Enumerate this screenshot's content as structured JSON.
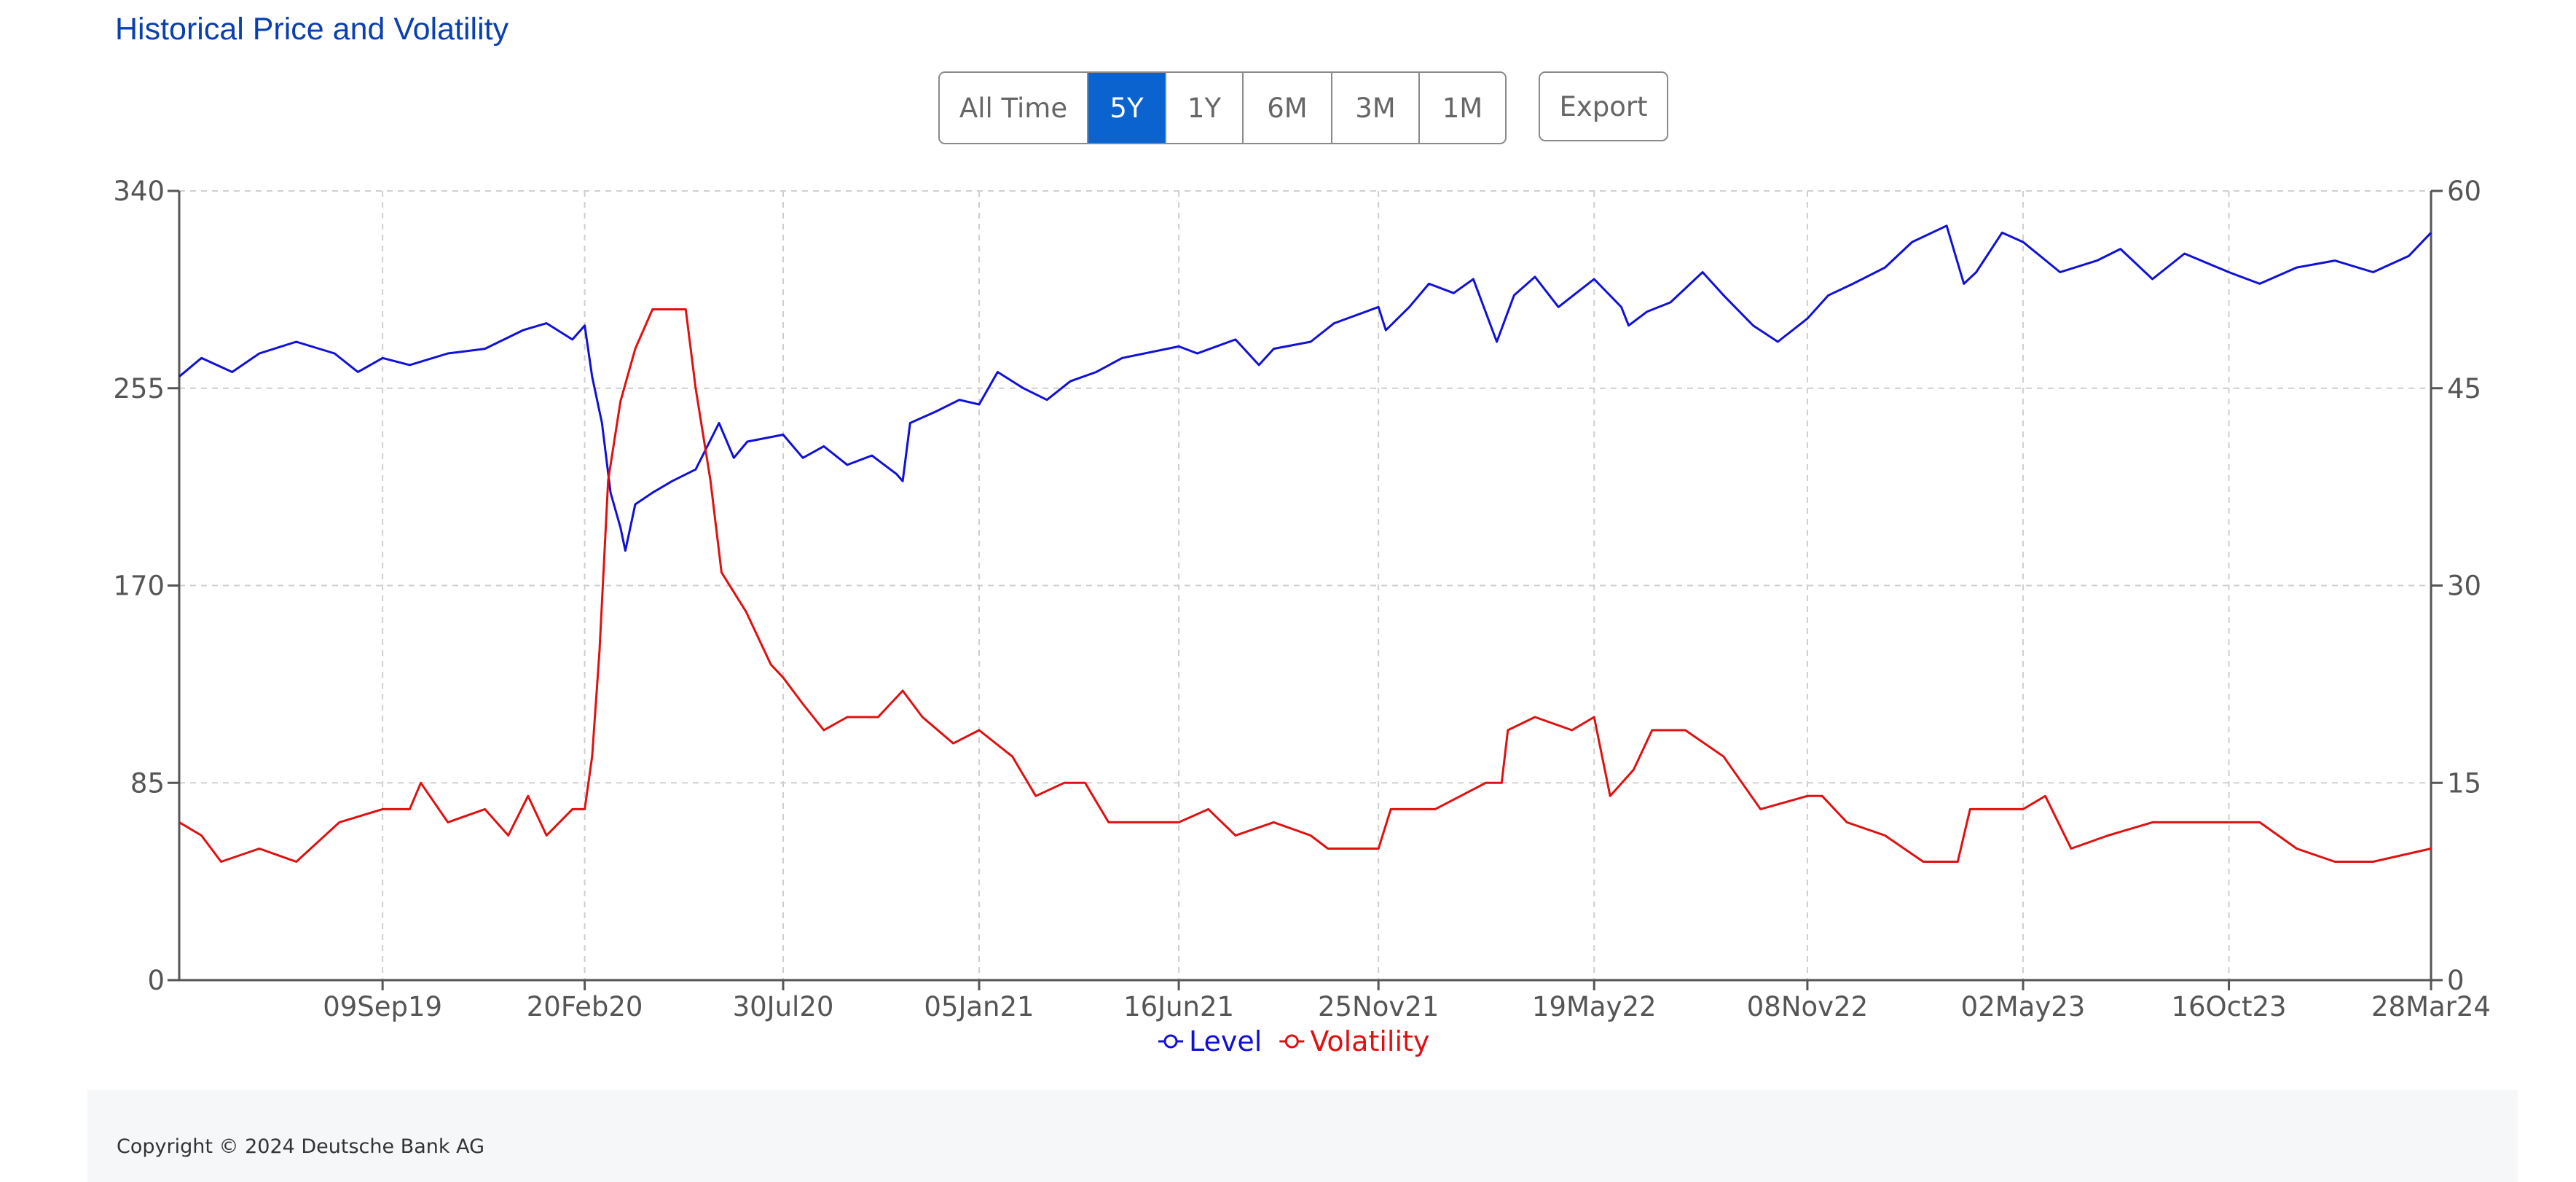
{
  "title": "Historical Price and Volatility",
  "range_buttons": [
    {
      "label": "All Time",
      "active": false
    },
    {
      "label": "5Y",
      "active": true
    },
    {
      "label": "1Y",
      "active": false
    },
    {
      "label": "6M",
      "active": false
    },
    {
      "label": "3M",
      "active": false
    },
    {
      "label": "1M",
      "active": false
    }
  ],
  "export_label": "Export",
  "footer": {
    "copyright": "Copyright © 2024 Deutsche Bank AG"
  },
  "colors": {
    "level": "#1010d8",
    "volatility": "#e01010",
    "grid": "#cfcfcf",
    "axis": "#555555",
    "active_button": "#0b63d0"
  },
  "chart_data": {
    "type": "line",
    "title": "",
    "xlabel": "",
    "ylabel_left": "",
    "ylabel_right": "",
    "x_tick_labels": [
      "09Sep19",
      "20Feb20",
      "30Jul20",
      "05Jan21",
      "16Jun21",
      "25Nov21",
      "19May22",
      "08Nov22",
      "02May23",
      "16Oct23",
      "28Mar24"
    ],
    "xlim": [
      "2019-03-28",
      "2024-03-28"
    ],
    "y_left": {
      "ticks": [
        0,
        85,
        170,
        255,
        340
      ],
      "lim": [
        0,
        340
      ]
    },
    "y_right": {
      "ticks": [
        0,
        15,
        30,
        45,
        60
      ],
      "lim": [
        0,
        60
      ]
    },
    "grid": true,
    "legend_position": "bottom-center",
    "series": [
      {
        "name": "Level",
        "axis": "left",
        "color": "#1010d8",
        "points": [
          [
            "2019-03-28",
            260
          ],
          [
            "2019-04-15",
            268
          ],
          [
            "2019-05-10",
            262
          ],
          [
            "2019-06-01",
            270
          ],
          [
            "2019-07-01",
            275
          ],
          [
            "2019-08-01",
            270
          ],
          [
            "2019-08-20",
            262
          ],
          [
            "2019-09-09",
            268
          ],
          [
            "2019-10-01",
            265
          ],
          [
            "2019-11-01",
            270
          ],
          [
            "2019-12-01",
            272
          ],
          [
            "2020-01-01",
            280
          ],
          [
            "2020-01-20",
            283
          ],
          [
            "2020-02-10",
            276
          ],
          [
            "2020-02-20",
            282
          ],
          [
            "2020-02-26",
            260
          ],
          [
            "2020-03-05",
            240
          ],
          [
            "2020-03-12",
            210
          ],
          [
            "2020-03-20",
            195
          ],
          [
            "2020-03-24",
            185
          ],
          [
            "2020-04-01",
            205
          ],
          [
            "2020-04-15",
            210
          ],
          [
            "2020-05-01",
            215
          ],
          [
            "2020-05-20",
            220
          ],
          [
            "2020-06-08",
            240
          ],
          [
            "2020-06-20",
            225
          ],
          [
            "2020-07-01",
            232
          ],
          [
            "2020-07-30",
            235
          ],
          [
            "2020-08-15",
            225
          ],
          [
            "2020-09-01",
            230
          ],
          [
            "2020-09-20",
            222
          ],
          [
            "2020-10-10",
            226
          ],
          [
            "2020-10-30",
            218
          ],
          [
            "2020-11-04",
            215
          ],
          [
            "2020-11-10",
            240
          ],
          [
            "2020-12-01",
            245
          ],
          [
            "2020-12-20",
            250
          ],
          [
            "2021-01-05",
            248
          ],
          [
            "2021-01-20",
            262
          ],
          [
            "2021-02-10",
            255
          ],
          [
            "2021-03-01",
            250
          ],
          [
            "2021-03-20",
            258
          ],
          [
            "2021-04-10",
            262
          ],
          [
            "2021-05-01",
            268
          ],
          [
            "2021-06-16",
            273
          ],
          [
            "2021-07-01",
            270
          ],
          [
            "2021-08-01",
            276
          ],
          [
            "2021-08-20",
            265
          ],
          [
            "2021-09-01",
            272
          ],
          [
            "2021-10-01",
            275
          ],
          [
            "2021-10-20",
            283
          ],
          [
            "2021-11-25",
            290
          ],
          [
            "2021-12-01",
            280
          ],
          [
            "2021-12-20",
            290
          ],
          [
            "2022-01-05",
            300
          ],
          [
            "2022-01-25",
            296
          ],
          [
            "2022-02-10",
            302
          ],
          [
            "2022-03-01",
            275
          ],
          [
            "2022-03-15",
            295
          ],
          [
            "2022-04-01",
            303
          ],
          [
            "2022-04-20",
            290
          ],
          [
            "2022-05-19",
            302
          ],
          [
            "2022-06-10",
            290
          ],
          [
            "2022-06-16",
            282
          ],
          [
            "2022-07-01",
            288
          ],
          [
            "2022-07-20",
            292
          ],
          [
            "2022-08-15",
            305
          ],
          [
            "2022-09-01",
            295
          ],
          [
            "2022-09-25",
            282
          ],
          [
            "2022-10-15",
            275
          ],
          [
            "2022-11-08",
            285
          ],
          [
            "2022-11-25",
            295
          ],
          [
            "2022-12-15",
            300
          ],
          [
            "2023-01-10",
            307
          ],
          [
            "2023-02-01",
            318
          ],
          [
            "2023-03-01",
            325
          ],
          [
            "2023-03-15",
            300
          ],
          [
            "2023-03-25",
            305
          ],
          [
            "2023-04-15",
            322
          ],
          [
            "2023-05-02",
            318
          ],
          [
            "2023-06-01",
            305
          ],
          [
            "2023-07-01",
            310
          ],
          [
            "2023-07-20",
            315
          ],
          [
            "2023-08-15",
            302
          ],
          [
            "2023-09-10",
            313
          ],
          [
            "2023-10-16",
            305
          ],
          [
            "2023-11-10",
            300
          ],
          [
            "2023-12-10",
            307
          ],
          [
            "2024-01-10",
            310
          ],
          [
            "2024-02-10",
            305
          ],
          [
            "2024-03-10",
            312
          ],
          [
            "2024-03-28",
            322
          ]
        ]
      },
      {
        "name": "Volatility",
        "axis": "right",
        "color": "#e01010",
        "points": [
          [
            "2019-03-28",
            12
          ],
          [
            "2019-04-15",
            11
          ],
          [
            "2019-05-01",
            9
          ],
          [
            "2019-06-01",
            10
          ],
          [
            "2019-07-01",
            9
          ],
          [
            "2019-08-05",
            12
          ],
          [
            "2019-09-09",
            13
          ],
          [
            "2019-10-01",
            13
          ],
          [
            "2019-10-10",
            15
          ],
          [
            "2019-11-01",
            12
          ],
          [
            "2019-12-01",
            13
          ],
          [
            "2019-12-20",
            11
          ],
          [
            "2020-01-05",
            14
          ],
          [
            "2020-01-20",
            11
          ],
          [
            "2020-02-10",
            13
          ],
          [
            "2020-02-20",
            13
          ],
          [
            "2020-02-26",
            17
          ],
          [
            "2020-03-03",
            25
          ],
          [
            "2020-03-10",
            38
          ],
          [
            "2020-03-20",
            44
          ],
          [
            "2020-04-01",
            48
          ],
          [
            "2020-04-15",
            51
          ],
          [
            "2020-05-01",
            51
          ],
          [
            "2020-05-12",
            51
          ],
          [
            "2020-05-20",
            45
          ],
          [
            "2020-06-01",
            38
          ],
          [
            "2020-06-10",
            31
          ],
          [
            "2020-06-30",
            28
          ],
          [
            "2020-07-20",
            24
          ],
          [
            "2020-07-30",
            23
          ],
          [
            "2020-08-15",
            21
          ],
          [
            "2020-09-01",
            19
          ],
          [
            "2020-09-20",
            20
          ],
          [
            "2020-10-15",
            20
          ],
          [
            "2020-11-04",
            22
          ],
          [
            "2020-11-20",
            20
          ],
          [
            "2020-12-15",
            18
          ],
          [
            "2021-01-05",
            19
          ],
          [
            "2021-02-01",
            17
          ],
          [
            "2021-02-20",
            14
          ],
          [
            "2021-03-15",
            15
          ],
          [
            "2021-04-01",
            15
          ],
          [
            "2021-04-20",
            12
          ],
          [
            "2021-05-15",
            12
          ],
          [
            "2021-06-16",
            12
          ],
          [
            "2021-07-10",
            13
          ],
          [
            "2021-08-01",
            11
          ],
          [
            "2021-09-01",
            12
          ],
          [
            "2021-10-01",
            11
          ],
          [
            "2021-10-15",
            10
          ],
          [
            "2021-11-25",
            10
          ],
          [
            "2021-12-05",
            13
          ],
          [
            "2022-01-10",
            13
          ],
          [
            "2022-02-20",
            15
          ],
          [
            "2022-03-05",
            15
          ],
          [
            "2022-03-10",
            19
          ],
          [
            "2022-04-01",
            20
          ],
          [
            "2022-05-01",
            19
          ],
          [
            "2022-05-19",
            20
          ],
          [
            "2022-06-01",
            14
          ],
          [
            "2022-06-20",
            16
          ],
          [
            "2022-07-05",
            19
          ],
          [
            "2022-08-01",
            19
          ],
          [
            "2022-09-01",
            17
          ],
          [
            "2022-10-01",
            13
          ],
          [
            "2022-11-08",
            14
          ],
          [
            "2022-11-20",
            14
          ],
          [
            "2022-12-10",
            12
          ],
          [
            "2023-01-10",
            11
          ],
          [
            "2023-02-10",
            9
          ],
          [
            "2023-03-10",
            9
          ],
          [
            "2023-03-20",
            13
          ],
          [
            "2023-04-20",
            13
          ],
          [
            "2023-05-02",
            13
          ],
          [
            "2023-05-20",
            14
          ],
          [
            "2023-06-10",
            10
          ],
          [
            "2023-07-10",
            11
          ],
          [
            "2023-08-15",
            12
          ],
          [
            "2023-09-10",
            12
          ],
          [
            "2023-10-16",
            12
          ],
          [
            "2023-11-10",
            12
          ],
          [
            "2023-12-10",
            10
          ],
          [
            "2024-01-10",
            9
          ],
          [
            "2024-02-10",
            9
          ],
          [
            "2024-03-28",
            10
          ]
        ]
      }
    ]
  }
}
